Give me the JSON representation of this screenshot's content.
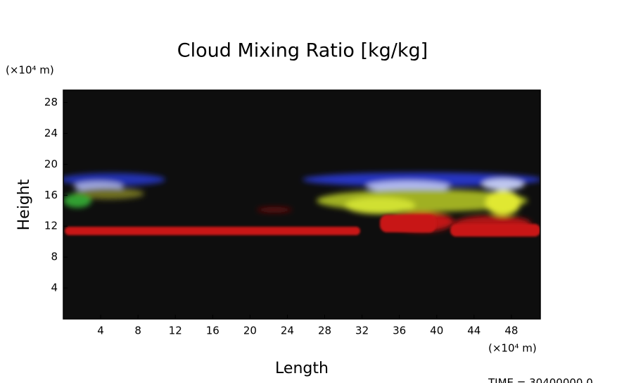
{
  "chart_data": {
    "type": "volume",
    "title": "Cloud Mixing Ratio [kg/kg]",
    "x_label": "Length",
    "y_label": "Height",
    "x_unit": "(×10⁴ m)",
    "y_unit": "(×10⁴ m)",
    "time_label": "TIME = 30400000.0",
    "xlim": [
      0,
      51.1
    ],
    "ylim": [
      0,
      29.6
    ],
    "xticks": [
      4,
      8,
      12,
      16,
      20,
      24,
      28,
      32,
      36,
      40,
      44,
      48
    ],
    "yticks": [
      4,
      8,
      12,
      16,
      20,
      24,
      28
    ]
  }
}
